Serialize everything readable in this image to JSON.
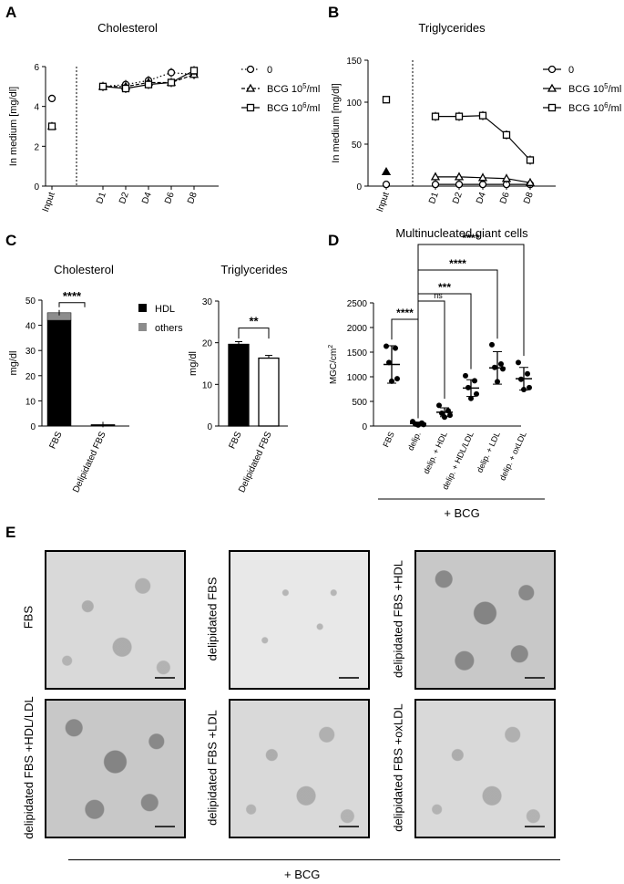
{
  "panels": {
    "A": "A",
    "B": "B",
    "C": "C",
    "D": "D",
    "E": "E"
  },
  "chart_data": [
    {
      "id": "A",
      "type": "line",
      "title": "Cholesterol",
      "ylabel": "In medium [mg/dl]",
      "ylim": [
        0,
        6
      ],
      "yticks": [
        "0",
        "2",
        "4",
        "6"
      ],
      "input_label": "Input",
      "categories": [
        "D1",
        "D2",
        "D4",
        "D6",
        "D8"
      ],
      "input_values": {
        "s0": 4.4,
        "s1": 3.0,
        "s2": 3.0
      },
      "series": [
        {
          "key": "s0",
          "name": "0",
          "marker": "circle",
          "dash": "dotted",
          "values": [
            5.0,
            5.1,
            5.3,
            5.7,
            5.6
          ]
        },
        {
          "key": "s1",
          "name": "BCG 10",
          "sup": "5",
          "suffix": "/ml",
          "marker": "triangle",
          "dash": "dashed",
          "values": [
            5.0,
            5.0,
            5.2,
            5.2,
            5.6
          ]
        },
        {
          "key": "s2",
          "name": "BCG 10",
          "sup": "6",
          "suffix": "/ml",
          "marker": "square",
          "dash": "solid",
          "values": [
            5.0,
            4.9,
            5.1,
            5.2,
            5.8
          ]
        }
      ]
    },
    {
      "id": "B",
      "type": "line",
      "title": "Triglycerides",
      "ylabel": "In medium [mg/dl]",
      "ylim": [
        0,
        150
      ],
      "yticks": [
        "0",
        "50",
        "100",
        "150"
      ],
      "input_label": "Input",
      "categories": [
        "D1",
        "D2",
        "D4",
        "D6",
        "D8"
      ],
      "input_values": {
        "s0": 2,
        "s1": 17,
        "s2": 103
      },
      "series": [
        {
          "key": "s0",
          "name": "0",
          "marker": "circle",
          "dash": "solid",
          "values": [
            2,
            2,
            2,
            2,
            2
          ]
        },
        {
          "key": "s1",
          "name": "BCG 10",
          "sup": "5",
          "suffix": "/ml",
          "marker": "triangle",
          "dash": "solid",
          "values": [
            11,
            11,
            10,
            9,
            4
          ]
        },
        {
          "key": "s2",
          "name": "BCG 10",
          "sup": "6",
          "suffix": "/ml",
          "marker": "square",
          "dash": "solid",
          "values": [
            83,
            83,
            84,
            61,
            31
          ]
        }
      ]
    },
    {
      "id": "C1",
      "type": "bar",
      "title": "Cholesterol",
      "ylabel": "mg/dl",
      "ylim": [
        0,
        50
      ],
      "yticks": [
        "0",
        "10",
        "20",
        "30",
        "40",
        "50"
      ],
      "categories": [
        "FBS",
        "Delipidated FBS"
      ],
      "series": [
        {
          "name": "HDL",
          "color": "#000000",
          "values": [
            42,
            0.4
          ]
        },
        {
          "name": "others",
          "color": "#8c8c8c",
          "values": [
            3,
            0.2
          ]
        }
      ],
      "significance": "****"
    },
    {
      "id": "C2",
      "type": "bar",
      "title": "Triglycerides",
      "ylabel": "mg/dl",
      "ylim": [
        0,
        30
      ],
      "yticks": [
        "0",
        "10",
        "20",
        "30"
      ],
      "categories": [
        "FBS",
        "Delipidated FBS"
      ],
      "values": [
        19.6,
        16.3
      ],
      "significance": "**"
    },
    {
      "id": "D",
      "type": "scatter",
      "title": "Multinucleated giant cells",
      "ylabel": "MGC/cm",
      "ylabel_sup": "2",
      "ylim": [
        0,
        2500
      ],
      "yticks": [
        "0",
        "500",
        "1000",
        "1500",
        "2000",
        "2500"
      ],
      "categories": [
        "FBS",
        "delip.",
        "delip. + HDL",
        "delip. + HDL/LDL",
        "delip. + LDL",
        "delip. + oxLDL"
      ],
      "groups": [
        {
          "mean": 1250,
          "sd": 380,
          "points": [
            1620,
            1580,
            1290,
            960,
            910
          ]
        },
        {
          "mean": 50,
          "sd": 30,
          "points": [
            90,
            60,
            40,
            30,
            20
          ]
        },
        {
          "mean": 280,
          "sd": 90,
          "points": [
            420,
            310,
            260,
            220,
            180
          ]
        },
        {
          "mean": 770,
          "sd": 170,
          "points": [
            1020,
            920,
            780,
            650,
            560
          ]
        },
        {
          "mean": 1180,
          "sd": 330,
          "points": [
            1650,
            1260,
            1190,
            1160,
            900
          ]
        },
        {
          "mean": 960,
          "sd": 230,
          "points": [
            1290,
            1060,
            950,
            780,
            740
          ]
        }
      ],
      "comparisons": [
        "****",
        "ns",
        "***",
        "****",
        "****"
      ],
      "footer": "+ BCG"
    }
  ],
  "micrographs": [
    {
      "label": "FBS",
      "style": "normal"
    },
    {
      "label": "delipidated FBS",
      "style": "sparse"
    },
    {
      "label": "delipidated FBS +HDL",
      "style": "dense"
    },
    {
      "label": "delipidated FBS +HDL/LDL",
      "style": "dense"
    },
    {
      "label": "delipidated FBS +LDL",
      "style": "normal"
    },
    {
      "label": "delipidated FBS +oxLDL",
      "style": "normal"
    }
  ],
  "e_footer": "+ BCG"
}
